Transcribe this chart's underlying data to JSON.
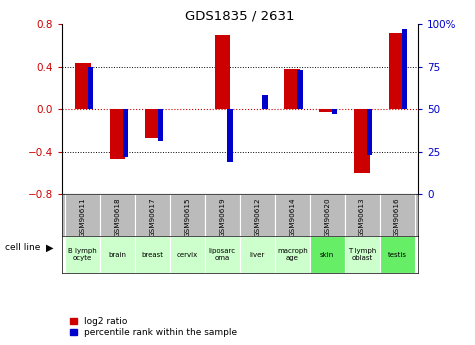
{
  "title": "GDS1835 / 2631",
  "samples": [
    "GSM90611",
    "GSM90618",
    "GSM90617",
    "GSM90615",
    "GSM90619",
    "GSM90612",
    "GSM90614",
    "GSM90620",
    "GSM90613",
    "GSM90616"
  ],
  "cell_lines": [
    "B lymph\nocyte",
    "brain",
    "breast",
    "cervix",
    "liposarc\noma",
    "liver",
    "macroph\nage",
    "skin",
    "T lymph\noblast",
    "testis"
  ],
  "cell_line_colors": [
    "#ccffcc",
    "#ccffcc",
    "#ccffcc",
    "#ccffcc",
    "#ccffcc",
    "#ccffcc",
    "#ccffcc",
    "#66ee66",
    "#ccffcc",
    "#66ee66"
  ],
  "log2_ratio": [
    0.43,
    -0.47,
    -0.27,
    0.0,
    0.7,
    0.0,
    0.38,
    -0.03,
    -0.6,
    0.72
  ],
  "percentile_rank": [
    75,
    22,
    31,
    50,
    19,
    58,
    73,
    47,
    23,
    97
  ],
  "ylim_left": [
    -0.8,
    0.8
  ],
  "ylim_right": [
    0,
    100
  ],
  "yticks_left": [
    -0.8,
    -0.4,
    0.0,
    0.4,
    0.8
  ],
  "yticks_right": [
    0,
    25,
    50,
    75,
    100
  ],
  "red_color": "#cc0000",
  "blue_color": "#0000cc",
  "bg_color": "#ffffff",
  "sample_bg": "#bbbbbb",
  "legend_red": "log2 ratio",
  "legend_blue": "percentile rank within the sample"
}
